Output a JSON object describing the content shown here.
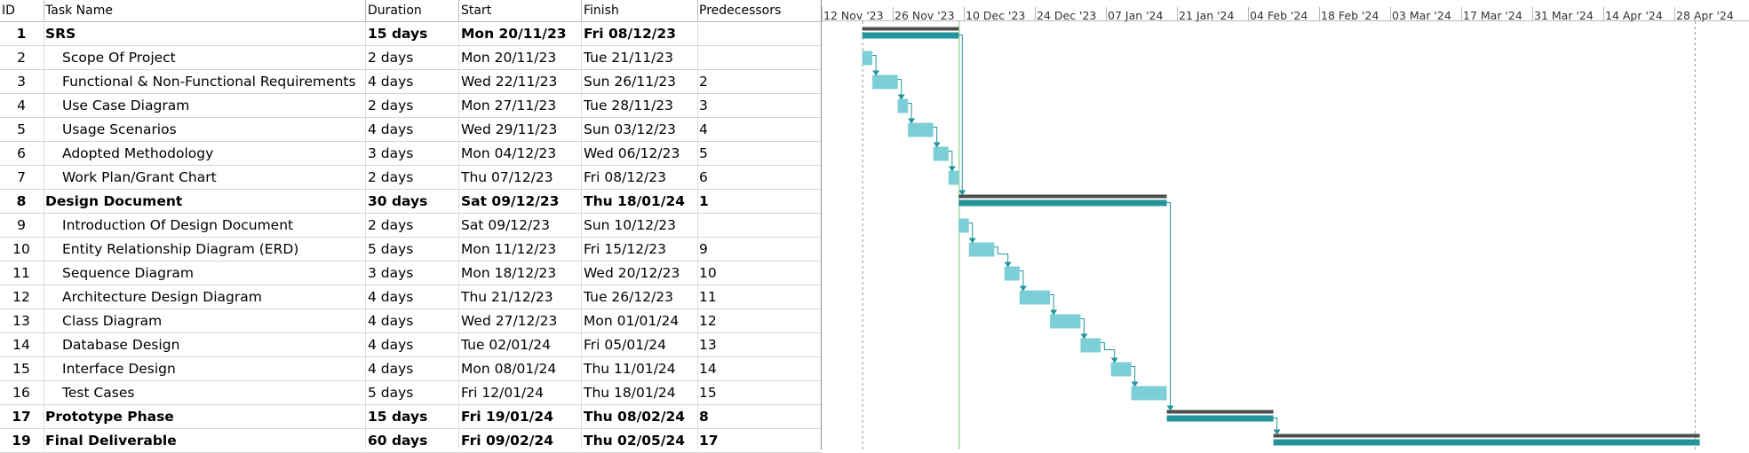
{
  "table": {
    "columns": {
      "id": "ID",
      "name": "Task Name",
      "duration": "Duration",
      "start": "Start",
      "finish": "Finish",
      "predecessors": "Predecessors"
    },
    "rows": [
      {
        "id": "1",
        "name": "SRS",
        "duration": "15 days",
        "start": "Mon 20/11/23",
        "finish": "Fri 08/12/23",
        "predecessors": "",
        "summary": true
      },
      {
        "id": "2",
        "name": "Scope Of Project",
        "duration": "2 days",
        "start": "Mon 20/11/23",
        "finish": "Tue 21/11/23",
        "predecessors": "",
        "summary": false
      },
      {
        "id": "3",
        "name": "Functional & Non-Functional Requirements",
        "duration": "4 days",
        "start": "Wed 22/11/23",
        "finish": "Sun 26/11/23",
        "predecessors": "2",
        "summary": false
      },
      {
        "id": "4",
        "name": "Use Case Diagram",
        "duration": "2 days",
        "start": "Mon 27/11/23",
        "finish": "Tue 28/11/23",
        "predecessors": "3",
        "summary": false
      },
      {
        "id": "5",
        "name": "Usage Scenarios",
        "duration": "4 days",
        "start": "Wed 29/11/23",
        "finish": "Sun 03/12/23",
        "predecessors": "4",
        "summary": false
      },
      {
        "id": "6",
        "name": "Adopted Methodology",
        "duration": "3 days",
        "start": "Mon 04/12/23",
        "finish": "Wed 06/12/23",
        "predecessors": "5",
        "summary": false
      },
      {
        "id": "7",
        "name": "Work Plan/Grant Chart",
        "duration": "2 days",
        "start": "Thu 07/12/23",
        "finish": "Fri 08/12/23",
        "predecessors": "6",
        "summary": false
      },
      {
        "id": "8",
        "name": "Design Document",
        "duration": "30 days",
        "start": "Sat 09/12/23",
        "finish": "Thu 18/01/24",
        "predecessors": "1",
        "summary": true
      },
      {
        "id": "9",
        "name": "Introduction Of Design Document",
        "duration": "2 days",
        "start": "Sat 09/12/23",
        "finish": "Sun 10/12/23",
        "predecessors": "",
        "summary": false
      },
      {
        "id": "10",
        "name": "Entity Relationship Diagram (ERD)",
        "duration": "5 days",
        "start": "Mon 11/12/23",
        "finish": "Fri 15/12/23",
        "predecessors": "9",
        "summary": false
      },
      {
        "id": "11",
        "name": "Sequence Diagram",
        "duration": "3 days",
        "start": "Mon 18/12/23",
        "finish": "Wed 20/12/23",
        "predecessors": "10",
        "summary": false
      },
      {
        "id": "12",
        "name": "Architecture Design Diagram",
        "duration": "4 days",
        "start": "Thu 21/12/23",
        "finish": "Tue 26/12/23",
        "predecessors": "11",
        "summary": false
      },
      {
        "id": "13",
        "name": "Class Diagram",
        "duration": "4 days",
        "start": "Wed 27/12/23",
        "finish": "Mon 01/01/24",
        "predecessors": "12",
        "summary": false
      },
      {
        "id": "14",
        "name": "Database Design",
        "duration": "4 days",
        "start": "Tue 02/01/24",
        "finish": "Fri 05/01/24",
        "predecessors": "13",
        "summary": false
      },
      {
        "id": "15",
        "name": "Interface Design",
        "duration": "4 days",
        "start": "Mon 08/01/24",
        "finish": "Thu 11/01/24",
        "predecessors": "14",
        "summary": false
      },
      {
        "id": "16",
        "name": "Test Cases",
        "duration": "5 days",
        "start": "Fri 12/01/24",
        "finish": "Thu 18/01/24",
        "predecessors": "15",
        "summary": false
      },
      {
        "id": "17",
        "name": "Prototype Phase",
        "duration": "15 days",
        "start": "Fri 19/01/24",
        "finish": "Thu 08/02/24",
        "predecessors": "8",
        "summary": true
      },
      {
        "id": "19",
        "name": "Final Deliverable",
        "duration": "60 days",
        "start": "Fri 09/02/24",
        "finish": "Thu 02/05/24",
        "predecessors": "17",
        "summary": true
      }
    ]
  },
  "timeline": {
    "ticks": [
      "12 Nov '23",
      "26 Nov '23",
      "10 Dec '23",
      "24 Dec '23",
      "07 Jan '24",
      "21 Jan '24",
      "04 Feb '24",
      "18 Feb '24",
      "03 Mar '24",
      "17 Mar '24",
      "31 Mar '24",
      "14 Apr '24",
      "28 Apr '24"
    ],
    "tick_dates": [
      "2023-11-12",
      "2023-11-26",
      "2023-12-10",
      "2023-12-24",
      "2024-01-07",
      "2024-01-21",
      "2024-02-04",
      "2024-02-18",
      "2024-03-03",
      "2024-03-17",
      "2024-03-31",
      "2024-04-14",
      "2024-04-28"
    ],
    "marker_dates": [
      "2023-11-20",
      "2023-12-09",
      "2024-05-02"
    ],
    "colors": {
      "task_bar": "#7ccfd6",
      "summary_bar": "#21959b",
      "summary_cap": "#4d4d4d",
      "link": "#21959b",
      "marker_line": "#8fcf8f",
      "dashed_line": "#9a9a9a",
      "header_border": "#b9b9b9"
    }
  }
}
